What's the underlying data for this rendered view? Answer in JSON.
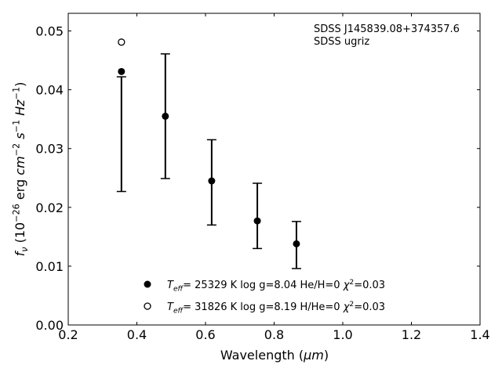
{
  "chart_data": {
    "type": "scatter",
    "xlabel_parts": [
      {
        "t": "Wavelength ("
      },
      {
        "t": "μm",
        "i": true
      },
      {
        "t": ")"
      }
    ],
    "ylabel_parts": [
      {
        "t": "f",
        "i": true
      },
      {
        "t": "ν",
        "i": true,
        "sub": true
      },
      {
        "t": " (10"
      },
      {
        "t": "−26",
        "sup": true
      },
      {
        "t": " erg "
      },
      {
        "t": "cm",
        "i": true
      },
      {
        "t": "−2",
        "sup": true
      },
      {
        "t": " "
      },
      {
        "t": "s",
        "i": true
      },
      {
        "t": "−1",
        "sup": true
      },
      {
        "t": " "
      },
      {
        "t": "Hz",
        "i": true
      },
      {
        "t": "−1",
        "sup": true
      },
      {
        "t": ")"
      }
    ],
    "xlim": [
      0.2,
      1.4
    ],
    "ylim": [
      0.0,
      0.053
    ],
    "xticks": [
      "0.2",
      "0.4",
      "0.6",
      "0.8",
      "1.0",
      "1.2",
      "1.4"
    ],
    "yticks": [
      "0.00",
      "0.01",
      "0.02",
      "0.03",
      "0.04",
      "0.05"
    ],
    "grid": false,
    "annotation": [
      "SDSS J145839.08+374357.6",
      "SDSS ugriz"
    ],
    "observed": {
      "x": [
        0.355,
        0.483,
        0.618,
        0.751,
        0.865
      ],
      "y": [
        0.0431,
        0.0355,
        0.0245,
        0.0177,
        0.0138
      ],
      "err_low": [
        0.0227,
        0.0249,
        0.017,
        0.013,
        0.0096
      ],
      "err_high": [
        0.0422,
        0.0461,
        0.0315,
        0.0241,
        0.0176
      ]
    },
    "model_open": {
      "x": [
        0.355
      ],
      "y": [
        0.0481
      ]
    },
    "legend": {
      "placement": "bottom-center",
      "entries": [
        {
          "marker": "filled",
          "parts": [
            {
              "t": "T",
              "i": true
            },
            {
              "t": "eff",
              "i": true,
              "sub": true
            },
            {
              "t": "= 25329 K  log g=8.04  He/H=0  "
            },
            {
              "t": "χ",
              "i": true
            },
            {
              "t": "2",
              "sup": true
            },
            {
              "t": "=0.03"
            }
          ]
        },
        {
          "marker": "open",
          "parts": [
            {
              "t": "T",
              "i": true
            },
            {
              "t": "eff",
              "i": true,
              "sub": true
            },
            {
              "t": "= 31826 K  log g=8.19  H/He=0  "
            },
            {
              "t": "χ",
              "i": true
            },
            {
              "t": "2",
              "sup": true
            },
            {
              "t": "=0.03"
            }
          ]
        }
      ]
    }
  }
}
